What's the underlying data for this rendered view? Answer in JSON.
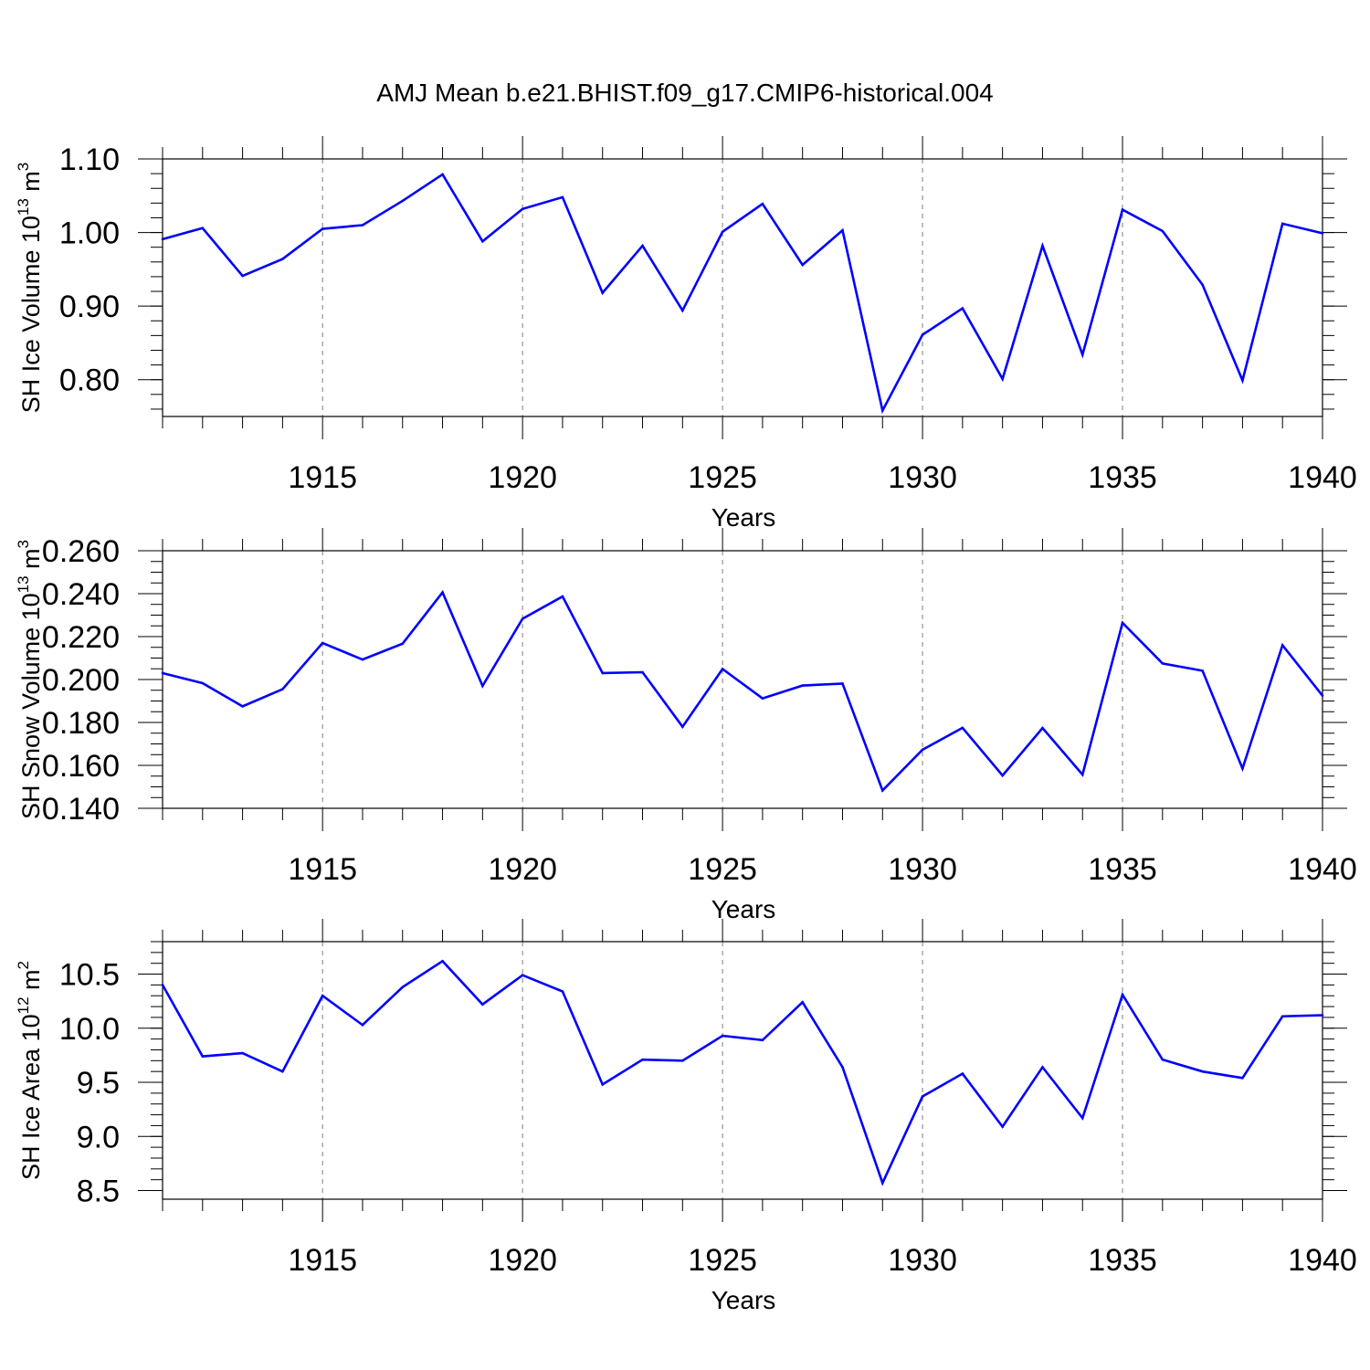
{
  "figure": {
    "title": "AMJ Mean b.e21.BHIST.f09_g17.CMIP6-historical.004"
  },
  "line_color": "#0000ff",
  "grid_color": "#7f7f7f",
  "chart_data": [
    {
      "type": "line",
      "xlabel": "Years",
      "ylabel": {
        "text": "SH Ice Volume 10",
        "sup": "13",
        "unit": " m",
        "unit_sup": "3"
      },
      "xlim": [
        1911,
        1940
      ],
      "ylim": [
        0.75,
        1.1
      ],
      "grid": {
        "x_dashed_at": [
          1915,
          1920,
          1925,
          1930,
          1935
        ]
      },
      "xticks": [
        1915,
        1920,
        1925,
        1930,
        1935,
        1940
      ],
      "xtick_labels": [
        "1915",
        "1920",
        "1925",
        "1930",
        "1935",
        "1940"
      ],
      "yticks": [
        0.8,
        0.9,
        1.0,
        1.1
      ],
      "ytick_labels": [
        "0.80",
        "0.90",
        "1.00",
        "1.10"
      ],
      "y_minor_step": 0.02,
      "x": [
        1911,
        1912,
        1913,
        1914,
        1915,
        1916,
        1917,
        1918,
        1919,
        1920,
        1921,
        1922,
        1923,
        1924,
        1925,
        1926,
        1927,
        1928,
        1929,
        1930,
        1931,
        1932,
        1933,
        1934,
        1935,
        1936,
        1937,
        1938,
        1939,
        1940
      ],
      "series": [
        {
          "values": [
            0.991,
            1.006,
            0.941,
            0.964,
            1.005,
            1.01,
            1.043,
            1.079,
            0.988,
            1.032,
            1.048,
            0.918,
            0.982,
            0.894,
            1.001,
            1.039,
            0.956,
            1.003,
            0.758,
            0.861,
            0.897,
            0.801,
            0.982,
            0.834,
            1.031,
            1.002,
            0.929,
            0.799,
            1.012,
            0.999
          ]
        }
      ]
    },
    {
      "type": "line",
      "xlabel": "Years",
      "ylabel": {
        "text": "SH Snow Volume 10",
        "sup": "13",
        "unit": " m",
        "unit_sup": "3"
      },
      "xlim": [
        1911,
        1940
      ],
      "ylim": [
        0.14,
        0.26
      ],
      "grid": {
        "x_dashed_at": [
          1915,
          1920,
          1925,
          1930,
          1935
        ]
      },
      "xticks": [
        1915,
        1920,
        1925,
        1930,
        1935,
        1940
      ],
      "xtick_labels": [
        "1915",
        "1920",
        "1925",
        "1930",
        "1935",
        "1940"
      ],
      "yticks": [
        0.14,
        0.16,
        0.18,
        0.2,
        0.22,
        0.24,
        0.26
      ],
      "ytick_labels": [
        "0.140",
        "0.160",
        "0.180",
        "0.200",
        "0.220",
        "0.240",
        "0.260"
      ],
      "y_minor_step": 0.005,
      "x": [
        1911,
        1912,
        1913,
        1914,
        1915,
        1916,
        1917,
        1918,
        1919,
        1920,
        1921,
        1922,
        1923,
        1924,
        1925,
        1926,
        1927,
        1928,
        1929,
        1930,
        1931,
        1932,
        1933,
        1934,
        1935,
        1936,
        1937,
        1938,
        1939,
        1940
      ],
      "series": [
        {
          "values": [
            0.203,
            0.1983,
            0.1875,
            0.1955,
            0.217,
            0.2093,
            0.2167,
            0.2406,
            0.197,
            0.2283,
            0.2387,
            0.203,
            0.2034,
            0.178,
            0.2049,
            0.1912,
            0.1972,
            0.1981,
            0.1483,
            0.1673,
            0.1775,
            0.1553,
            0.1774,
            0.1557,
            0.2264,
            0.2075,
            0.2041,
            0.1585,
            0.216,
            0.1925
          ]
        }
      ]
    },
    {
      "type": "line",
      "xlabel": "Years",
      "ylabel": {
        "text": "SH Ice Area 10",
        "sup": "12",
        "unit": " m",
        "unit_sup": "2"
      },
      "xlim": [
        1911,
        1940
      ],
      "ylim": [
        8.42,
        10.8
      ],
      "grid": {
        "x_dashed_at": [
          1915,
          1920,
          1925,
          1930,
          1935
        ]
      },
      "xticks": [
        1915,
        1920,
        1925,
        1930,
        1935,
        1940
      ],
      "xtick_labels": [
        "1915",
        "1920",
        "1925",
        "1930",
        "1935",
        "1940"
      ],
      "yticks": [
        8.5,
        9.0,
        9.5,
        10.0,
        10.5
      ],
      "ytick_labels": [
        "8.5",
        "9.0",
        "9.5",
        "10.0",
        "10.5"
      ],
      "y_minor_step": 0.1,
      "x": [
        1911,
        1912,
        1913,
        1914,
        1915,
        1916,
        1917,
        1918,
        1919,
        1920,
        1921,
        1922,
        1923,
        1924,
        1925,
        1926,
        1927,
        1928,
        1929,
        1930,
        1931,
        1932,
        1933,
        1934,
        1935,
        1936,
        1937,
        1938,
        1939,
        1940
      ],
      "series": [
        {
          "values": [
            10.4,
            9.74,
            9.77,
            9.6,
            10.3,
            10.03,
            10.38,
            10.62,
            10.22,
            10.49,
            10.34,
            9.48,
            9.71,
            9.7,
            9.93,
            9.89,
            10.24,
            9.64,
            8.57,
            9.37,
            9.58,
            9.09,
            9.64,
            9.17,
            10.31,
            9.71,
            9.6,
            9.54,
            10.11,
            10.12
          ]
        }
      ]
    }
  ]
}
